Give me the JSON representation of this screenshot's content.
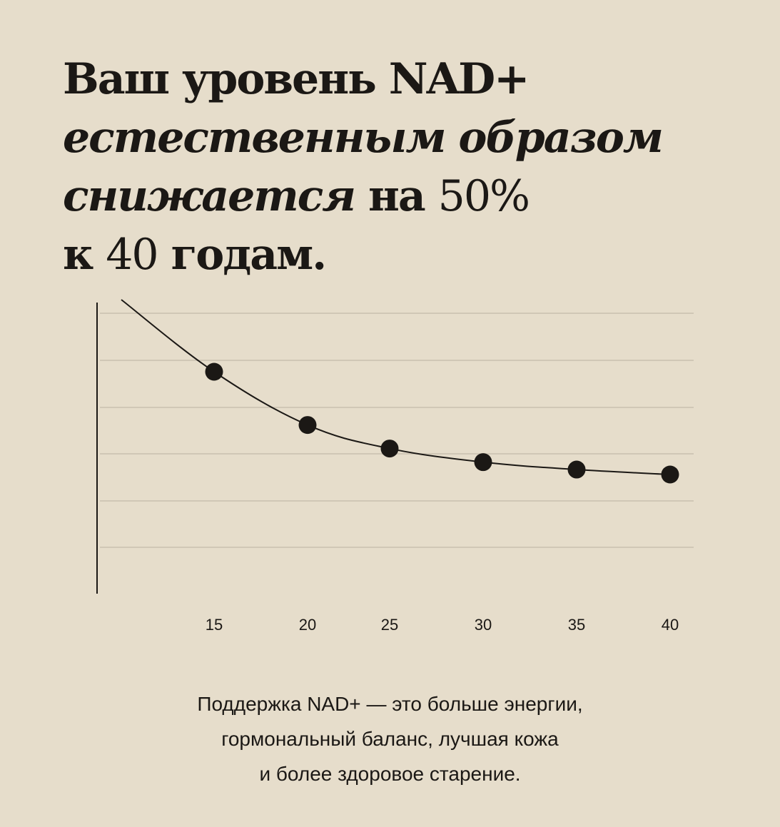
{
  "headline": {
    "line1": "Ваш уровень NAD+",
    "line2": "естественным образом",
    "line3_italic": "снижается",
    "line3_bold": " на ",
    "line3_value": "50%",
    "line4_bold_a": "к ",
    "line4_value": "40",
    "line4_bold_b": " годам."
  },
  "chart_data": {
    "type": "line",
    "x": [
      15,
      20,
      25,
      30,
      35,
      40
    ],
    "values": [
      100,
      78.5,
      69,
      63.5,
      60.5,
      58.5
    ],
    "tick_labels": [
      "15",
      "20",
      "25",
      "30",
      "35",
      "40"
    ],
    "title": "",
    "xlabel": "",
    "ylabel": "",
    "grid": true,
    "line_color": "#1b1815",
    "grid_color": "#c9c0b0"
  },
  "caption": {
    "line1": "Поддержка NAD+ — это больше энергии,",
    "line2": "гормональный баланс, лучшая кожа",
    "line3": "и более здоровое старение."
  },
  "colors": {
    "background": "#e6ddcb",
    "text": "#1b1815"
  }
}
